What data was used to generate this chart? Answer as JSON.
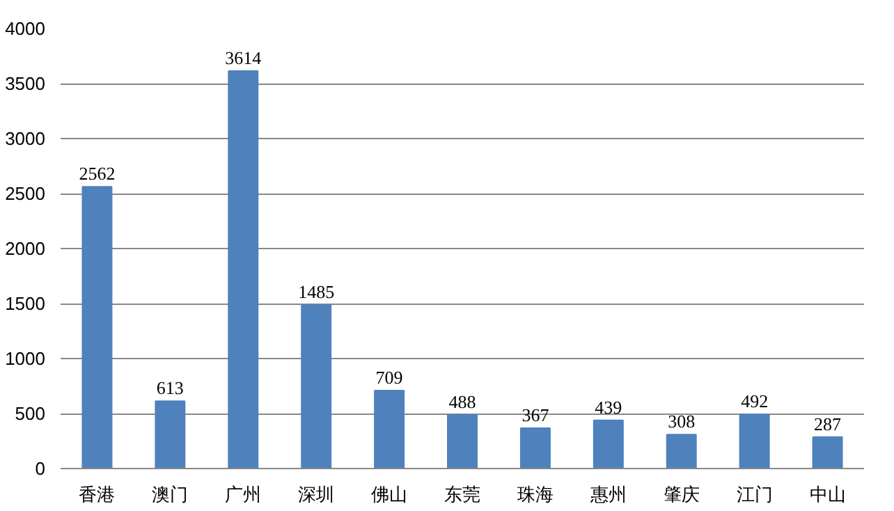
{
  "chart_data": {
    "type": "bar",
    "categories": [
      "香港",
      "澳门",
      "广州",
      "深圳",
      "佛山",
      "东莞",
      "珠海",
      "惠州",
      "肇庆",
      "江门",
      "中山"
    ],
    "values": [
      2562,
      613,
      3614,
      1485,
      709,
      488,
      367,
      439,
      308,
      492,
      287
    ],
    "color": "#4f81bd",
    "ylim": [
      0,
      4000
    ],
    "yticks": [
      0,
      500,
      1000,
      1500,
      2000,
      2500,
      3000,
      3500,
      4000
    ],
    "grid": "y",
    "data_labels": true
  }
}
